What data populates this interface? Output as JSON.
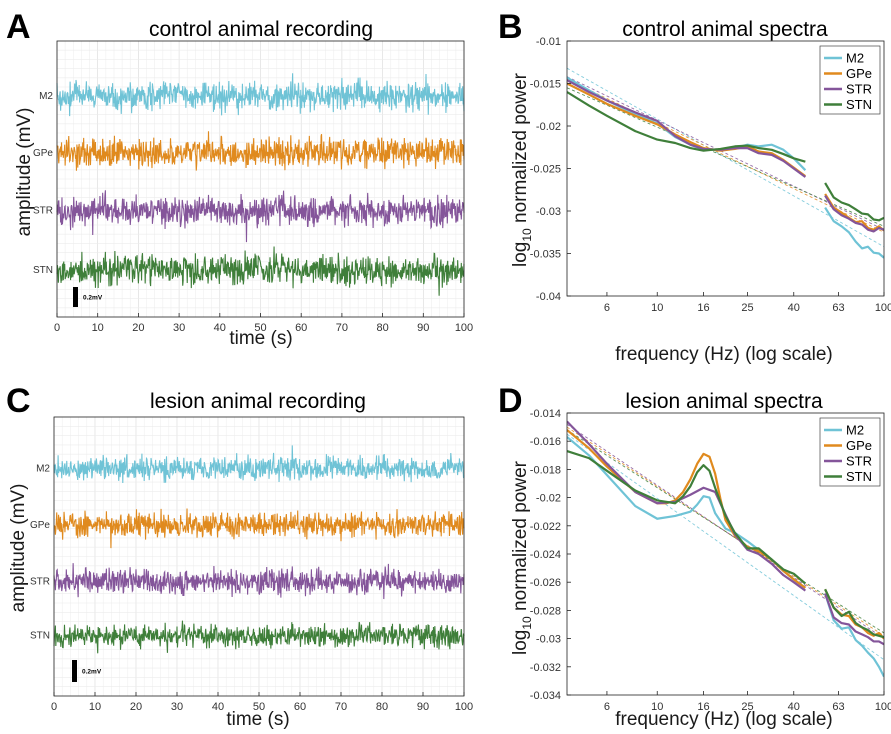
{
  "colors": {
    "M2": "#6fc3d6",
    "GPe": "#e08a1e",
    "STR": "#84559a",
    "STN": "#3f7f3a",
    "reference_fit": "#8c8c8c"
  },
  "panels": [
    {
      "letter": "A",
      "chart_data": {
        "type": "line",
        "title": "control animal recording",
        "xlabel": "time (s)",
        "ylabel": "amplitude (mV)",
        "xlim": [
          0,
          100
        ],
        "xticks": [
          "0",
          "10",
          "20",
          "30",
          "40",
          "50",
          "60",
          "70",
          "80",
          "90",
          "100"
        ],
        "grid": true,
        "channels": [
          "M2",
          "GPe",
          "STR",
          "STN"
        ],
        "scale_bar": "0.2mV",
        "noise_level": [
          1.0,
          1.0,
          1.0,
          1.0
        ]
      }
    },
    {
      "letter": "B",
      "chart_data": {
        "type": "line",
        "title": "control animal spectra",
        "xlabel": "frequency (Hz) (log scale)",
        "ylabel_main": "log",
        "ylabel_sub": "10",
        "ylabel_rest": " normalized power",
        "xscale": "log",
        "xlim": [
          4,
          100
        ],
        "ylim": [
          -0.04,
          -0.01
        ],
        "xticks": [
          6,
          10,
          16,
          25,
          40,
          63,
          100
        ],
        "yticks": [
          -0.04,
          -0.035,
          -0.03,
          -0.025,
          -0.02,
          -0.015,
          -0.01
        ],
        "ytick_labels": [
          "-0.04",
          "-0.035",
          "-0.03",
          "-0.025",
          "-0.02",
          "-0.015",
          "-0.01"
        ],
        "legend": [
          "M2",
          "GPe",
          "STR",
          "STN"
        ],
        "legend_position": "top-right",
        "series": [
          {
            "name": "M2",
            "segments": [
              {
                "x": [
                  4,
                  5,
                  6,
                  8,
                  10,
                  12,
                  14,
                  16,
                  19,
                  22,
                  25,
                  28,
                  32,
                  36,
                  40,
                  45
                ],
                "y": [
                  -0.0143,
                  -0.0158,
                  -0.017,
                  -0.0186,
                  -0.0197,
                  -0.0213,
                  -0.0222,
                  -0.0228,
                  -0.0228,
                  -0.0226,
                  -0.0222,
                  -0.0224,
                  -0.0222,
                  -0.0228,
                  -0.0238,
                  -0.0252
                ]
              },
              {
                "x": [
                  55,
                  60,
                  65,
                  70,
                  75,
                  80,
                  85,
                  90,
                  95,
                  100
                ],
                "y": [
                  -0.0296,
                  -0.0312,
                  -0.0318,
                  -0.0325,
                  -0.0336,
                  -0.0344,
                  -0.0342,
                  -0.0349,
                  -0.035,
                  -0.0355
                ]
              }
            ]
          },
          {
            "name": "GPe",
            "segments": [
              {
                "x": [
                  4,
                  5,
                  6,
                  8,
                  10,
                  12,
                  14,
                  16,
                  19,
                  22,
                  25,
                  28,
                  32,
                  36,
                  40,
                  45
                ],
                "y": [
                  -0.015,
                  -0.0163,
                  -0.0174,
                  -0.0188,
                  -0.0198,
                  -0.021,
                  -0.0219,
                  -0.0226,
                  -0.0229,
                  -0.0227,
                  -0.0224,
                  -0.023,
                  -0.0232,
                  -0.024,
                  -0.0249,
                  -0.0259
                ]
              },
              {
                "x": [
                  55,
                  60,
                  65,
                  70,
                  75,
                  80,
                  85,
                  90,
                  95,
                  100
                ],
                "y": [
                  -0.028,
                  -0.0296,
                  -0.0302,
                  -0.0308,
                  -0.0313,
                  -0.0312,
                  -0.032,
                  -0.0322,
                  -0.0318,
                  -0.0323
                ]
              }
            ]
          },
          {
            "name": "STR",
            "segments": [
              {
                "x": [
                  4,
                  5,
                  6,
                  8,
                  10,
                  12,
                  14,
                  16,
                  19,
                  22,
                  25,
                  28,
                  32,
                  36,
                  40,
                  45
                ],
                "y": [
                  -0.0146,
                  -0.016,
                  -0.017,
                  -0.0184,
                  -0.0194,
                  -0.0212,
                  -0.0222,
                  -0.0227,
                  -0.0228,
                  -0.0226,
                  -0.0226,
                  -0.0232,
                  -0.0234,
                  -0.0241,
                  -0.025,
                  -0.026
                ]
              },
              {
                "x": [
                  55,
                  60,
                  65,
                  70,
                  75,
                  80,
                  85,
                  90,
                  95,
                  100
                ],
                "y": [
                  -0.0282,
                  -0.0298,
                  -0.0305,
                  -0.0309,
                  -0.0314,
                  -0.0316,
                  -0.0322,
                  -0.0324,
                  -0.032,
                  -0.0322
                ]
              }
            ]
          },
          {
            "name": "STN",
            "segments": [
              {
                "x": [
                  4,
                  5,
                  6,
                  8,
                  10,
                  12,
                  14,
                  16,
                  19,
                  22,
                  25,
                  28,
                  32,
                  36,
                  40,
                  45
                ],
                "y": [
                  -0.016,
                  -0.0176,
                  -0.0188,
                  -0.0206,
                  -0.0216,
                  -0.022,
                  -0.0226,
                  -0.0229,
                  -0.0227,
                  -0.0224,
                  -0.0223,
                  -0.0226,
                  -0.0228,
                  -0.0233,
                  -0.0238,
                  -0.0242
                ]
              },
              {
                "x": [
                  55,
                  60,
                  65,
                  70,
                  75,
                  80,
                  85,
                  90,
                  95,
                  100
                ],
                "y": [
                  -0.0267,
                  -0.0284,
                  -0.029,
                  -0.0293,
                  -0.0298,
                  -0.0303,
                  -0.0304,
                  -0.031,
                  -0.0311,
                  -0.0308
                ]
              }
            ]
          }
        ],
        "fit_lines": [
          {
            "name": "M2",
            "x": [
              4,
              100
            ],
            "y": [
              -0.0132,
              -0.0342
            ]
          },
          {
            "name": "GPe",
            "x": [
              4,
              100
            ],
            "y": [
              -0.0145,
              -0.0325
            ]
          },
          {
            "name": "STR",
            "x": [
              4,
              100
            ],
            "y": [
              -0.0142,
              -0.0322
            ]
          },
          {
            "name": "STN",
            "x": [
              4,
              100
            ],
            "y": [
              -0.0155,
              -0.0318
            ]
          }
        ]
      }
    },
    {
      "letter": "C",
      "chart_data": {
        "type": "line",
        "title": "lesion animal recording",
        "xlabel": "time (s)",
        "ylabel": "amplitude (mV)",
        "xlim": [
          0,
          100
        ],
        "xticks": [
          "0",
          "10",
          "20",
          "30",
          "40",
          "50",
          "60",
          "70",
          "80",
          "90",
          "100"
        ],
        "grid": true,
        "channels": [
          "M2",
          "GPe",
          "STR",
          "STN"
        ],
        "scale_bar": "0.2mV",
        "noise_level": [
          0.8,
          0.85,
          0.85,
          0.75
        ]
      }
    },
    {
      "letter": "D",
      "chart_data": {
        "type": "line",
        "title": "lesion animal spectra",
        "xlabel": "frequency (Hz) (log scale)",
        "ylabel_main": "log",
        "ylabel_sub": "10",
        "ylabel_rest": " normalized power",
        "xscale": "log",
        "xlim": [
          4,
          100
        ],
        "ylim": [
          -0.034,
          -0.014
        ],
        "xticks": [
          6,
          10,
          16,
          25,
          40,
          63,
          100
        ],
        "yticks": [
          -0.034,
          -0.032,
          -0.03,
          -0.028,
          -0.026,
          -0.024,
          -0.022,
          -0.02,
          -0.018,
          -0.016,
          -0.014
        ],
        "ytick_labels": [
          "-0.034",
          "-0.032",
          "-0.03",
          "-0.028",
          "-0.026",
          "-0.024",
          "-0.022",
          "-0.02",
          "-0.018",
          "-0.016",
          "-0.014"
        ],
        "legend": [
          "M2",
          "GPe",
          "STR",
          "STN"
        ],
        "legend_position": "top-right",
        "series": [
          {
            "name": "M2",
            "segments": [
              {
                "x": [
                  4,
                  5,
                  6,
                  8,
                  10,
                  12,
                  14,
                  15,
                  16,
                  17,
                  18,
                  20,
                  22,
                  25,
                  28,
                  32,
                  36,
                  40,
                  45
                ],
                "y": [
                  -0.0157,
                  -0.017,
                  -0.0184,
                  -0.0206,
                  -0.0215,
                  -0.0213,
                  -0.021,
                  -0.0205,
                  -0.0199,
                  -0.02,
                  -0.0211,
                  -0.0222,
                  -0.0225,
                  -0.0231,
                  -0.0237,
                  -0.0244,
                  -0.0252,
                  -0.0258,
                  -0.0264
                ]
              },
              {
                "x": [
                  55,
                  60,
                  65,
                  70,
                  75,
                  80,
                  85,
                  90,
                  95,
                  100
                ],
                "y": [
                  -0.0268,
                  -0.0287,
                  -0.0293,
                  -0.0292,
                  -0.0301,
                  -0.0305,
                  -0.031,
                  -0.0314,
                  -0.032,
                  -0.0327
                ]
              }
            ]
          },
          {
            "name": "GPe",
            "segments": [
              {
                "x": [
                  4,
                  5,
                  6,
                  8,
                  10,
                  11,
                  12,
                  13,
                  14,
                  15,
                  16,
                  17,
                  18,
                  19,
                  20,
                  22,
                  25,
                  28,
                  32,
                  36,
                  40,
                  45
                ],
                "y": [
                  -0.0152,
                  -0.0165,
                  -0.0178,
                  -0.0196,
                  -0.0204,
                  -0.0204,
                  -0.0202,
                  -0.0196,
                  -0.0187,
                  -0.0176,
                  -0.0169,
                  -0.0171,
                  -0.0183,
                  -0.0201,
                  -0.0216,
                  -0.0227,
                  -0.0235,
                  -0.0238,
                  -0.0244,
                  -0.0252,
                  -0.0258,
                  -0.0264
                ]
              },
              {
                "x": [
                  55,
                  60,
                  65,
                  70,
                  75,
                  80,
                  85,
                  90,
                  95,
                  100
                ],
                "y": [
                  -0.0265,
                  -0.0278,
                  -0.0283,
                  -0.0284,
                  -0.029,
                  -0.0292,
                  -0.0296,
                  -0.0298,
                  -0.0296,
                  -0.03
                ]
              }
            ]
          },
          {
            "name": "STR",
            "segments": [
              {
                "x": [
                  4,
                  5,
                  6,
                  8,
                  10,
                  12,
                  14,
                  16,
                  18,
                  20,
                  22,
                  25,
                  28,
                  32,
                  36,
                  40,
                  45
                ],
                "y": [
                  -0.0146,
                  -0.0162,
                  -0.0176,
                  -0.0196,
                  -0.0204,
                  -0.0203,
                  -0.0198,
                  -0.0193,
                  -0.0196,
                  -0.0212,
                  -0.0226,
                  -0.0237,
                  -0.024,
                  -0.0247,
                  -0.0255,
                  -0.026,
                  -0.0266
                ]
              },
              {
                "x": [
                  55,
                  60,
                  65,
                  70,
                  75,
                  80,
                  85,
                  90,
                  95,
                  100
                ],
                "y": [
                  -0.0268,
                  -0.0285,
                  -0.0289,
                  -0.029,
                  -0.0295,
                  -0.0297,
                  -0.0299,
                  -0.0302,
                  -0.0302,
                  -0.0304
                ]
              }
            ]
          },
          {
            "name": "STN",
            "segments": [
              {
                "x": [
                  4,
                  5,
                  6,
                  8,
                  10,
                  12,
                  13,
                  14,
                  15,
                  16,
                  17,
                  18,
                  20,
                  22,
                  25,
                  28,
                  32,
                  36,
                  40,
                  45
                ],
                "y": [
                  -0.0167,
                  -0.0172,
                  -0.0181,
                  -0.0195,
                  -0.0202,
                  -0.0204,
                  -0.0199,
                  -0.0192,
                  -0.0182,
                  -0.0177,
                  -0.0181,
                  -0.0193,
                  -0.0213,
                  -0.0225,
                  -0.0236,
                  -0.0236,
                  -0.0244,
                  -0.0251,
                  -0.0254,
                  -0.0261
                ]
              },
              {
                "x": [
                  55,
                  60,
                  65,
                  70,
                  75,
                  80,
                  85,
                  90,
                  95,
                  100
                ],
                "y": [
                  -0.0265,
                  -0.0278,
                  -0.0284,
                  -0.0281,
                  -0.0289,
                  -0.0292,
                  -0.0294,
                  -0.0297,
                  -0.0298,
                  -0.0299
                ]
              }
            ]
          }
        ],
        "fit_lines": [
          {
            "name": "M2",
            "x": [
              4,
              100
            ],
            "y": [
              -0.0155,
              -0.0315
            ]
          },
          {
            "name": "GPe",
            "x": [
              4,
              100
            ],
            "y": [
              -0.015,
              -0.0298
            ]
          },
          {
            "name": "STR",
            "x": [
              4,
              100
            ],
            "y": [
              -0.0148,
              -0.03
            ]
          },
          {
            "name": "STN",
            "x": [
              4,
              100
            ],
            "y": [
              -0.0152,
              -0.0296
            ]
          }
        ]
      }
    }
  ]
}
